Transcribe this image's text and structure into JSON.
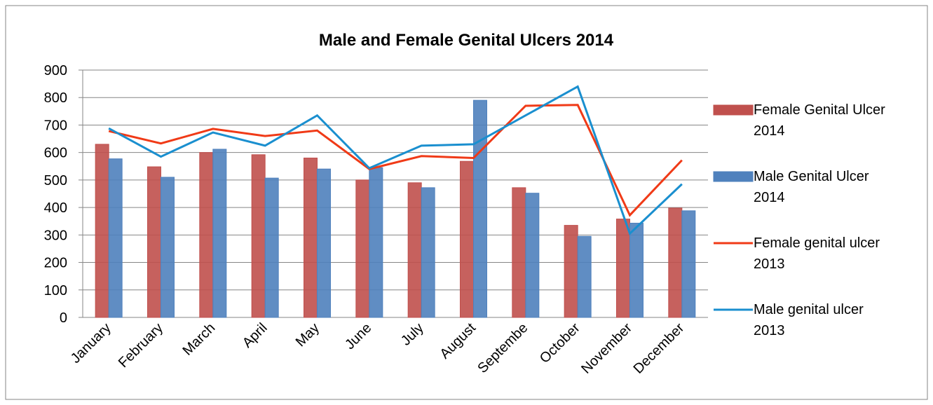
{
  "chart_data": {
    "type": "combo",
    "title": "Male and Female Genital Ulcers 2014",
    "categories": [
      "January",
      "February",
      "March",
      "April",
      "May",
      "June",
      "July",
      "August",
      "Septembe",
      "October",
      "November",
      "December"
    ],
    "series": [
      {
        "name": "Female Genital Ulcer 2014",
        "type": "bar",
        "color": "#c0504d",
        "values": [
          630,
          548,
          600,
          592,
          580,
          500,
          490,
          568,
          472,
          335,
          358,
          398
        ]
      },
      {
        "name": "Male Genital Ulcer 2014",
        "type": "bar",
        "color": "#4f81bd",
        "values": [
          577,
          510,
          612,
          507,
          540,
          545,
          472,
          790,
          452,
          295,
          343,
          388
        ]
      },
      {
        "name": "Female genital ulcer 2013",
        "type": "line",
        "color": "#f03a17",
        "values": [
          678,
          633,
          686,
          660,
          680,
          540,
          587,
          580,
          770,
          773,
          372,
          572
        ]
      },
      {
        "name": "Male genital ulcer 2013",
        "type": "line",
        "color": "#1a8fcf",
        "values": [
          688,
          585,
          673,
          625,
          735,
          543,
          625,
          630,
          735,
          840,
          305,
          485
        ]
      }
    ],
    "ylim": [
      0,
      900
    ],
    "yticks": [
      0,
      100,
      200,
      300,
      400,
      500,
      600,
      700,
      800,
      900
    ],
    "grid": true,
    "legend": "right"
  }
}
